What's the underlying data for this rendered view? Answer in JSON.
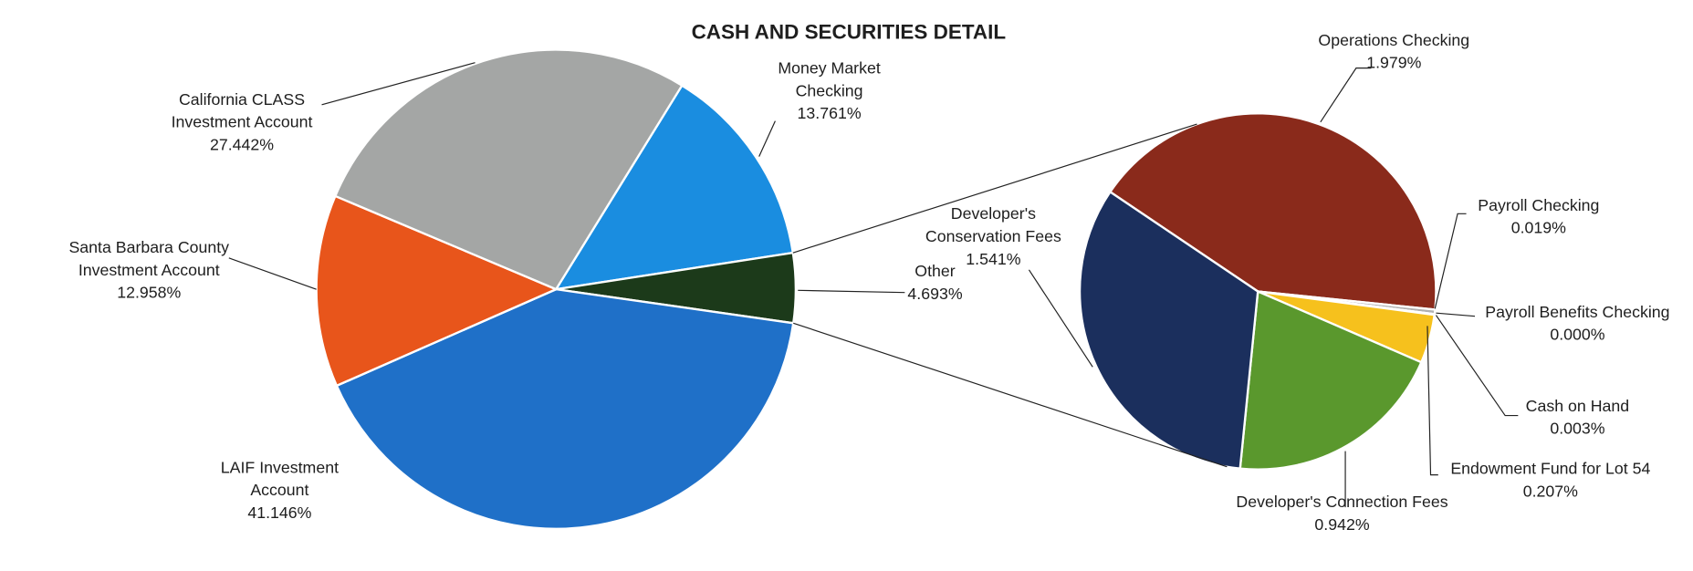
{
  "chart_data": [
    {
      "type": "pie",
      "title": "CASH AND SECURITIES DETAIL",
      "categories": [
        "Money Market Checking",
        "Other",
        "LAIF Investment Account",
        "Santa Barbara County Investment Account",
        "California CLASS Investment Account"
      ],
      "values": [
        13.761,
        4.693,
        41.146,
        12.958,
        27.442
      ],
      "value_labels": [
        "13.761%",
        "4.693%",
        "41.146%",
        "12.958%",
        "27.442%"
      ],
      "colors": [
        "#1a8de0",
        "#1c3a1a",
        "#1f70c8",
        "#e8551b",
        "#a4a6a5"
      ]
    },
    {
      "type": "pie",
      "categories": [
        "Operations Checking",
        "Payroll Checking",
        "Payroll Benefits Checking",
        "Cash on Hand",
        "Endowment Fund for Lot 54",
        "Developer's Connection Fees",
        "Developer's Conservation Fees"
      ],
      "values": [
        1.979,
        0.019,
        0.0,
        0.003,
        0.207,
        0.942,
        1.541
      ],
      "value_labels": [
        "1.979%",
        "0.019%",
        "0.000%",
        "0.003%",
        "0.207%",
        "0.942%",
        "1.541%"
      ],
      "colors": [
        "#8a2a1b",
        "#b0b0b0",
        "#6a8fc0",
        "#c04f2a",
        "#f6c11d",
        "#5a982d",
        "#1b2f5d"
      ]
    }
  ]
}
